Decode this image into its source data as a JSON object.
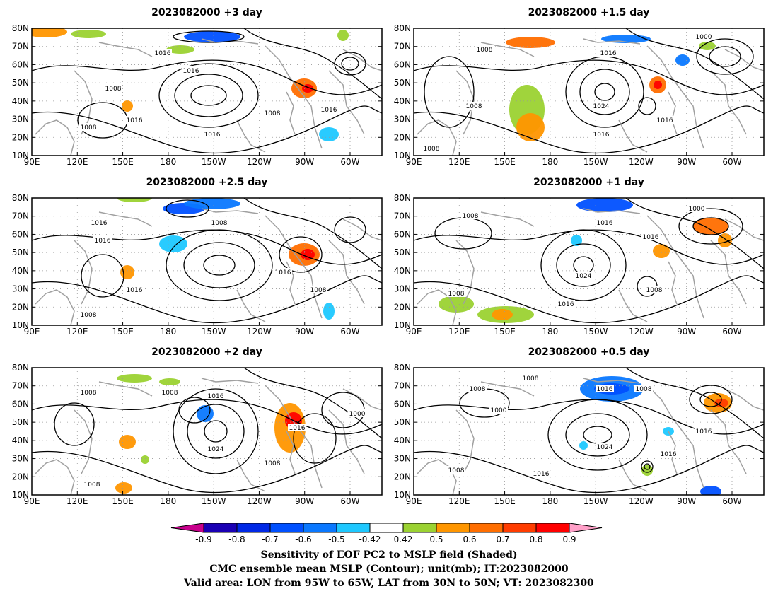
{
  "panels": [
    {
      "title": "2023082000  +3 day",
      "contour_labels": [
        "1016",
        "1016",
        "1008",
        "1008",
        "1016",
        "1008",
        "1016",
        "1016"
      ]
    },
    {
      "title": "2023082000  +1.5 day",
      "contour_labels": [
        "1008",
        "1000",
        "1016",
        "1008",
        "1024",
        "1016",
        "1016",
        "1008"
      ]
    },
    {
      "title": "2023082000  +2.5 day",
      "contour_labels": [
        "1016",
        "1008",
        "1016",
        "1016",
        "1016",
        "1008",
        "1008"
      ]
    },
    {
      "title": "2023082000  +1 day",
      "contour_labels": [
        "1008",
        "1016",
        "1000",
        "1016",
        "1024",
        "1008",
        "1008",
        "1016"
      ]
    },
    {
      "title": "2023082000  +2 day",
      "contour_labels": [
        "1008",
        "1008",
        "1016",
        "1000",
        "1016",
        "1024",
        "1008",
        "1008"
      ]
    },
    {
      "title": "2023082000  +0.5 day",
      "contour_labels": [
        "1008",
        "1008",
        "1016",
        "1008",
        "1000",
        "1016",
        "1024",
        "1016",
        "1008",
        "1016"
      ]
    }
  ],
  "axes": {
    "lat_ticks": [
      "80N",
      "70N",
      "60N",
      "50N",
      "40N",
      "30N",
      "20N",
      "10N"
    ],
    "lon_ticks": [
      "90E",
      "120E",
      "150E",
      "180",
      "150W",
      "120W",
      "90W",
      "60W"
    ]
  },
  "colorbar": {
    "labels": [
      "-0.9",
      "-0.8",
      "-0.7",
      "-0.6",
      "-0.5",
      "-0.42",
      "0.42",
      "0.5",
      "0.6",
      "0.7",
      "0.8",
      "0.9"
    ],
    "colors": [
      "#1a00b4",
      "#0028e6",
      "#0050ff",
      "#0a78ff",
      "#1ec8ff",
      "#ffffff",
      "#9bd232",
      "#ff9600",
      "#ff6e00",
      "#ff3c00",
      "#ff0000"
    ],
    "under_color": "#c8008c",
    "over_color": "#ffa0c8"
  },
  "captions": [
    "Sensitivity of EOF PC2 to MSLP field (Shaded)",
    "CMC ensemble mean MSLP (Contour); unit(mb); IT:2023082000",
    "Valid area: LON from 95W to 65W, LAT from 30N to 50N; VT: 2023082300"
  ],
  "colors": {
    "land_outline": "#a0a0a0",
    "contour": "#000000",
    "grid": "#999999"
  }
}
